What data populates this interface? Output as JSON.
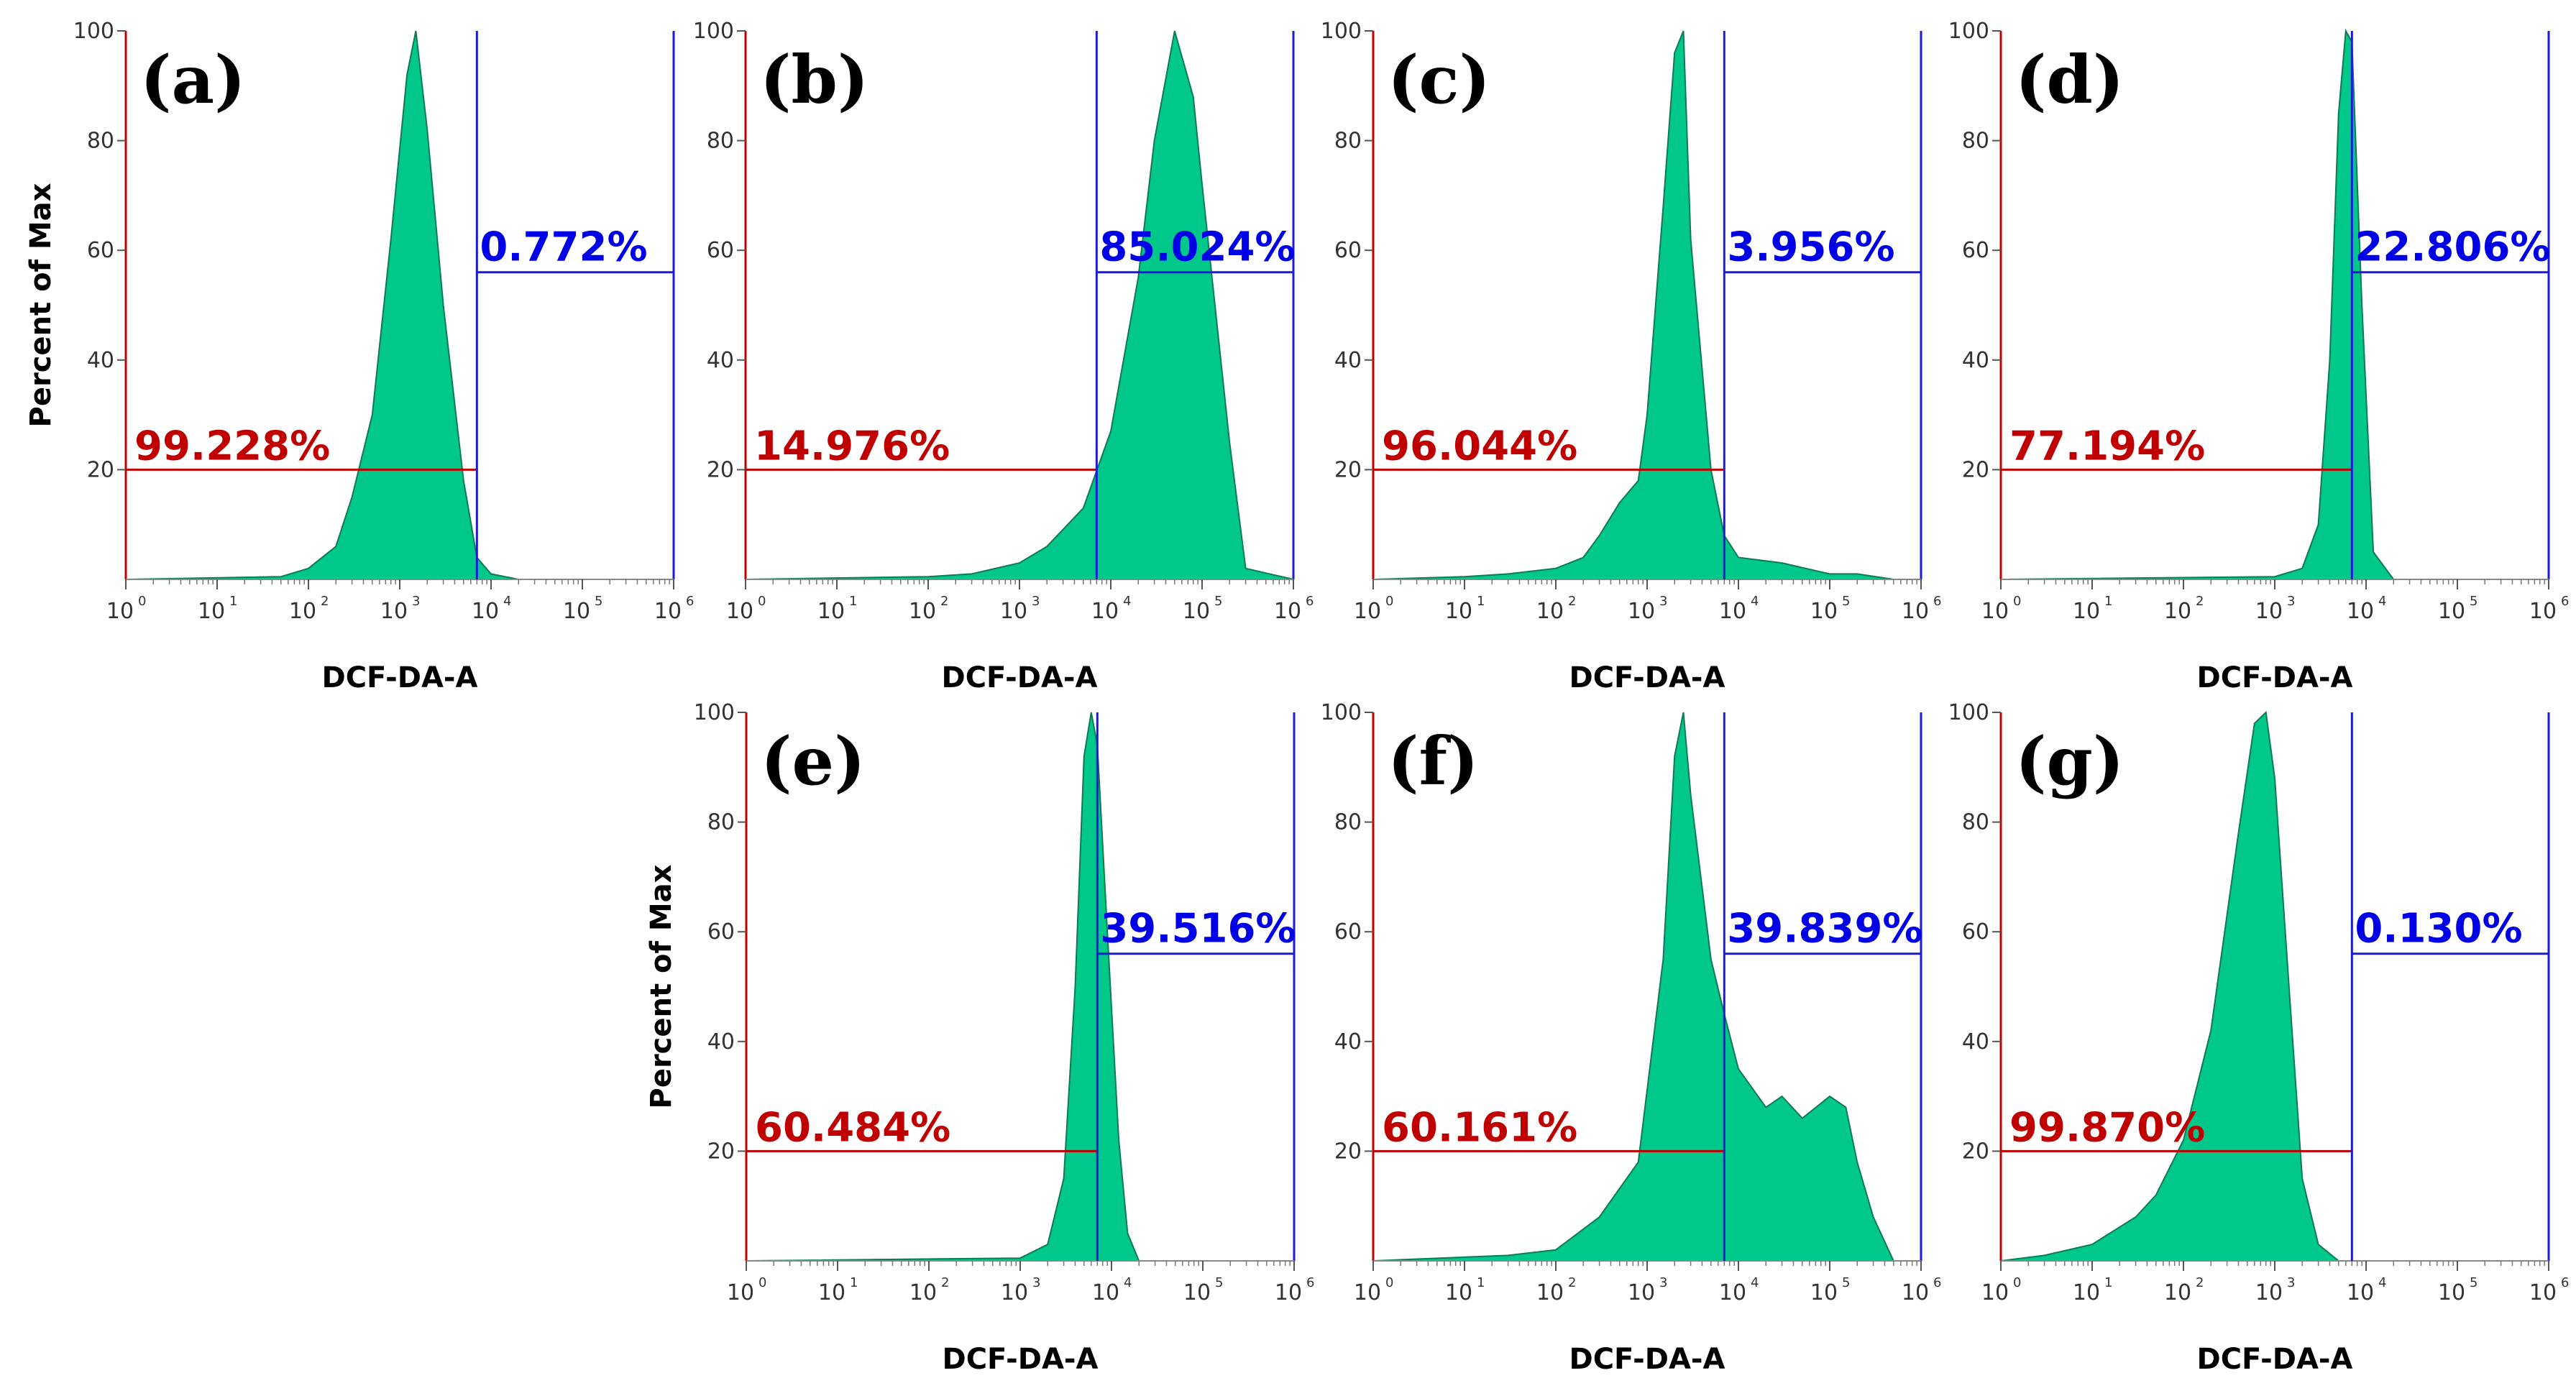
{
  "figure": {
    "x_axis_title": "DCF-DA-A",
    "y_axis_title": "Percent of Max"
  },
  "colors": {
    "fill": "#00c78a",
    "outline": "#0f7a55",
    "left_gate": "#c00000",
    "right_gate": "#1a1ad8",
    "frame": "#000000"
  },
  "chart_data": [
    {
      "type": "area",
      "panel": "(a)",
      "title": "(a)",
      "xlabel": "DCF-DA-A",
      "ylabel": "Percent of Max",
      "xscale": "log",
      "xlim": [
        1,
        1000000
      ],
      "ylim": [
        0,
        100
      ],
      "x_ticks": [
        "10",
        "10",
        "10",
        "10",
        "10",
        "10",
        "10"
      ],
      "x_tick_exponents": [
        "0",
        "1",
        "2",
        "3",
        "4",
        "5",
        "6"
      ],
      "y_ticks": [
        "20",
        "40",
        "60",
        "80",
        "100"
      ],
      "gate_x": 7000,
      "gate_left_label": "99.228%",
      "gate_right_label": "0.772%",
      "x": [
        1,
        50,
        100,
        200,
        300,
        500,
        800,
        1200,
        1500,
        2000,
        3000,
        5000,
        7000,
        10000,
        20000,
        1000000
      ],
      "y": [
        0,
        0.5,
        2,
        6,
        15,
        30,
        62,
        92,
        100,
        82,
        50,
        18,
        4,
        1,
        0,
        0
      ]
    },
    {
      "type": "area",
      "panel": "(b)",
      "title": "(b)",
      "xlabel": "DCF-DA-A",
      "ylabel": "",
      "xscale": "log",
      "xlim": [
        1,
        1000000
      ],
      "ylim": [
        0,
        100
      ],
      "x_ticks": [
        "10",
        "10",
        "10",
        "10",
        "10",
        "10",
        "10"
      ],
      "x_tick_exponents": [
        "0",
        "1",
        "2",
        "3",
        "4",
        "5",
        "6"
      ],
      "y_ticks": [
        "20",
        "40",
        "60",
        "80",
        "100"
      ],
      "gate_x": 7000,
      "gate_left_label": "14.976%",
      "gate_right_label": "85.024%",
      "x": [
        1,
        100,
        300,
        1000,
        2000,
        5000,
        10000,
        20000,
        30000,
        50000,
        80000,
        100000,
        200000,
        300000,
        1000000
      ],
      "y": [
        0,
        0.5,
        1,
        3,
        6,
        13,
        27,
        55,
        80,
        100,
        88,
        72,
        25,
        2,
        0
      ]
    },
    {
      "type": "area",
      "panel": "(c)",
      "title": "(c)",
      "xlabel": "DCF-DA-A",
      "ylabel": "",
      "xscale": "log",
      "xlim": [
        1,
        1000000
      ],
      "ylim": [
        0,
        100
      ],
      "x_ticks": [
        "10",
        "10",
        "10",
        "10",
        "10",
        "10",
        "10"
      ],
      "x_tick_exponents": [
        "0",
        "1",
        "2",
        "3",
        "4",
        "5",
        "6"
      ],
      "y_ticks": [
        "20",
        "40",
        "60",
        "80",
        "100"
      ],
      "gate_x": 7000,
      "gate_left_label": "96.044%",
      "gate_right_label": "3.956%",
      "x": [
        1,
        10,
        30,
        100,
        200,
        300,
        500,
        800,
        1000,
        1500,
        2000,
        2500,
        3000,
        5000,
        7000,
        10000,
        30000,
        100000,
        200000,
        500000,
        1000000
      ],
      "y": [
        0,
        0.5,
        1,
        2,
        4,
        8,
        14,
        18,
        30,
        68,
        96,
        100,
        62,
        20,
        8,
        4,
        3,
        1,
        1,
        0,
        0
      ]
    },
    {
      "type": "area",
      "panel": "(d)",
      "title": "(d)",
      "xlabel": "DCF-DA-A",
      "ylabel": "",
      "xscale": "log",
      "xlim": [
        1,
        1000000
      ],
      "ylim": [
        0,
        100
      ],
      "x_ticks": [
        "10",
        "10",
        "10",
        "10",
        "10",
        "10",
        "10"
      ],
      "x_tick_exponents": [
        "0",
        "1",
        "2",
        "3",
        "4",
        "5",
        "6"
      ],
      "y_ticks": [
        "20",
        "40",
        "60",
        "80",
        "100"
      ],
      "gate_x": 7000,
      "gate_left_label": "77.194%",
      "gate_right_label": "22.806%",
      "x": [
        1,
        1000,
        2000,
        3000,
        4000,
        5000,
        6000,
        7000,
        9000,
        12000,
        20000,
        1000000
      ],
      "y": [
        0,
        0.5,
        2,
        10,
        40,
        85,
        100,
        98,
        50,
        5,
        0,
        0
      ]
    },
    {
      "type": "area",
      "panel": "(e)",
      "title": "(e)",
      "xlabel": "DCF-DA-A",
      "ylabel": "Percent of Max",
      "xscale": "log",
      "xlim": [
        1,
        1000000
      ],
      "ylim": [
        0,
        100
      ],
      "x_ticks": [
        "10",
        "10",
        "10",
        "10",
        "10",
        "10",
        "10"
      ],
      "x_tick_exponents": [
        "0",
        "1",
        "2",
        "3",
        "4",
        "5",
        "6"
      ],
      "y_ticks": [
        "20",
        "40",
        "60",
        "80",
        "100"
      ],
      "gate_x": 7000,
      "gate_left_label": "60.484%",
      "gate_right_label": "39.516%",
      "x": [
        1,
        1000,
        2000,
        3000,
        4000,
        5000,
        6000,
        7000,
        9000,
        12000,
        15000,
        20000,
        1000000
      ],
      "y": [
        0,
        0.5,
        3,
        15,
        50,
        92,
        100,
        94,
        60,
        22,
        5,
        0,
        0
      ]
    },
    {
      "type": "area",
      "panel": "(f)",
      "title": "(f)",
      "xlabel": "DCF-DA-A",
      "ylabel": "",
      "xscale": "log",
      "xlim": [
        1,
        1000000
      ],
      "ylim": [
        0,
        100
      ],
      "x_ticks": [
        "10",
        "10",
        "10",
        "10",
        "10",
        "10",
        "10"
      ],
      "x_tick_exponents": [
        "0",
        "1",
        "2",
        "3",
        "4",
        "5",
        "6"
      ],
      "y_ticks": [
        "20",
        "40",
        "60",
        "80",
        "100"
      ],
      "gate_x": 7000,
      "gate_left_label": "60.161%",
      "gate_right_label": "39.839%",
      "x": [
        1,
        30,
        100,
        300,
        800,
        1500,
        2000,
        2500,
        3000,
        5000,
        7000,
        10000,
        20000,
        30000,
        50000,
        100000,
        150000,
        200000,
        300000,
        500000,
        1000000
      ],
      "y": [
        0,
        1,
        2,
        8,
        18,
        55,
        92,
        100,
        85,
        55,
        45,
        35,
        28,
        30,
        26,
        30,
        28,
        18,
        8,
        0,
        0
      ]
    },
    {
      "type": "area",
      "panel": "(g)",
      "title": "(g)",
      "xlabel": "DCF-DA-A",
      "ylabel": "",
      "xscale": "log",
      "xlim": [
        1,
        1000000
      ],
      "ylim": [
        0,
        100
      ],
      "x_ticks": [
        "10",
        "10",
        "10",
        "10",
        "10",
        "10",
        "10"
      ],
      "x_tick_exponents": [
        "0",
        "1",
        "2",
        "3",
        "4",
        "5",
        "6"
      ],
      "y_ticks": [
        "20",
        "40",
        "60",
        "80",
        "100"
      ],
      "gate_x": 7000,
      "gate_left_label": "99.870%",
      "gate_right_label": "0.130%",
      "x": [
        1,
        3,
        10,
        30,
        50,
        100,
        200,
        400,
        600,
        800,
        1000,
        1500,
        2000,
        3000,
        5000,
        1000000
      ],
      "y": [
        0,
        1,
        3,
        8,
        12,
        22,
        42,
        78,
        98,
        100,
        88,
        45,
        15,
        3,
        0,
        0
      ]
    }
  ]
}
